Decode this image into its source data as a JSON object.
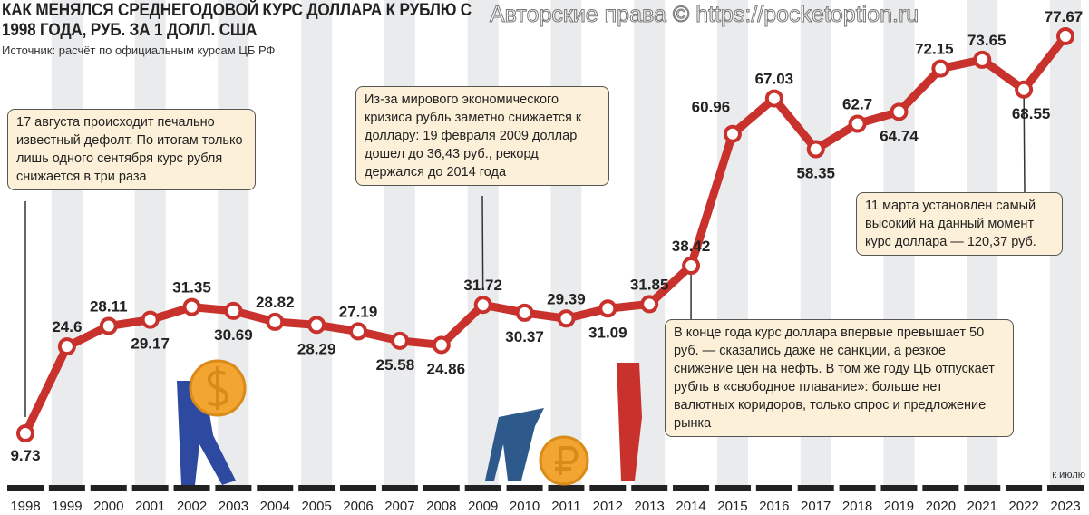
{
  "chart_data": {
    "type": "line",
    "title": "КАК МЕНЯЛСЯ СРЕДНЕГОДОВОЙ КУРС ДОЛЛАРА К РУБЛЮ С 1998 ГОДА, РУБ. ЗА 1 ДОЛЛ. США",
    "subtitle": "Источник: расчёт по официальным курсам ЦБ РФ",
    "categories": [
      "1998",
      "1999",
      "2000",
      "2001",
      "2002",
      "2003",
      "2004",
      "2005",
      "2006",
      "2007",
      "2008",
      "2009",
      "2010",
      "2011",
      "2012",
      "2013",
      "2014",
      "2015",
      "2016",
      "2017",
      "2018",
      "2019",
      "2020",
      "2021",
      "2022",
      "2023"
    ],
    "values": [
      9.73,
      24.6,
      28.11,
      29.17,
      31.35,
      30.69,
      28.82,
      28.29,
      27.19,
      25.58,
      24.86,
      31.72,
      30.37,
      29.39,
      31.09,
      31.85,
      38.42,
      60.96,
      67.03,
      58.35,
      62.7,
      64.74,
      72.15,
      73.65,
      68.55,
      77.67
    ],
    "data_labels": [
      "9.73",
      "24.6",
      "28.11",
      "29.17",
      "31.35",
      "30.69",
      "28.82",
      "28.29",
      "27.19",
      "25.58",
      "24.86",
      "31.72",
      "30.37",
      "29.39",
      "31.09",
      "31.85",
      "38.42",
      "60.96",
      "67.03",
      "58.35",
      "62.7",
      "64.74",
      "72.15",
      "73.65",
      "68.55",
      "77.67"
    ],
    "xlabel": "",
    "ylabel": "",
    "line_color": "#c8312c",
    "grid": false
  },
  "annotations": {
    "a1998": "17 августа происходит печально известный дефолт. По итогам только лишь одного сентября курс рубля снижается в три раза",
    "a2009": "Из-за мирового экономического кризиса рубль заметно снижается к доллару: 19 февраля 2009 доллар дошел до 36,43 руб., рекорд держался до 2014 года",
    "a2022": "11 марта установлен самый высокий на данный момент курс доллара — 120,37 руб.",
    "a2014": "В конце года курс доллара впервые превышает 50 руб. — сказались даже не санкции, а резкое снижение цен на нефть. В том же году ЦБ отпускает рубль в «свободное плавание»: больше нет валютных коридоров, только спрос и предложение рынка"
  },
  "note_2023": "к июлю",
  "watermark": "Авторские права © https://pocketoption.ru"
}
